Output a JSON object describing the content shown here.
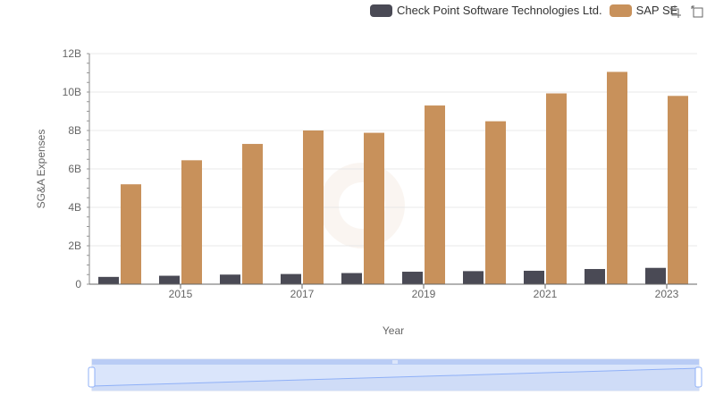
{
  "legend": {
    "series0": "Check Point Software Technologies Ltd.",
    "series1": "SAP SE"
  },
  "colors": {
    "series0": "#4a4a55",
    "series1": "#c8915b",
    "grid": "#e8e8e8",
    "axis": "#666666",
    "slider_fill": "#d6e2fb",
    "slider_line": "#8fb0f7"
  },
  "toolbox": {
    "zoom_icon": "data-zoom-icon",
    "restore_icon": "restore-icon"
  },
  "chart_data": {
    "type": "bar",
    "title": "",
    "xlabel": "Year",
    "ylabel": "SG&A Expenses",
    "categories": [
      "2014",
      "2015",
      "2016",
      "2017",
      "2018",
      "2019",
      "2020",
      "2021",
      "2022",
      "2023"
    ],
    "x_tick_labels": [
      "2015",
      "2017",
      "2019",
      "2021",
      "2023"
    ],
    "y_tick_labels": [
      "0",
      "2B",
      "4B",
      "6B",
      "8B",
      "10B",
      "12B"
    ],
    "ylim": [
      0,
      12000000000
    ],
    "series": [
      {
        "name": "Check Point Software Technologies Ltd.",
        "values": [
          380000000,
          440000000,
          500000000,
          530000000,
          580000000,
          650000000,
          680000000,
          700000000,
          790000000,
          850000000
        ]
      },
      {
        "name": "SAP SE",
        "values": [
          5200000000,
          6450000000,
          7300000000,
          8000000000,
          7880000000,
          9300000000,
          8480000000,
          9930000000,
          11050000000,
          9800000000
        ]
      }
    ],
    "grid": true,
    "legend_position": "top-right"
  }
}
